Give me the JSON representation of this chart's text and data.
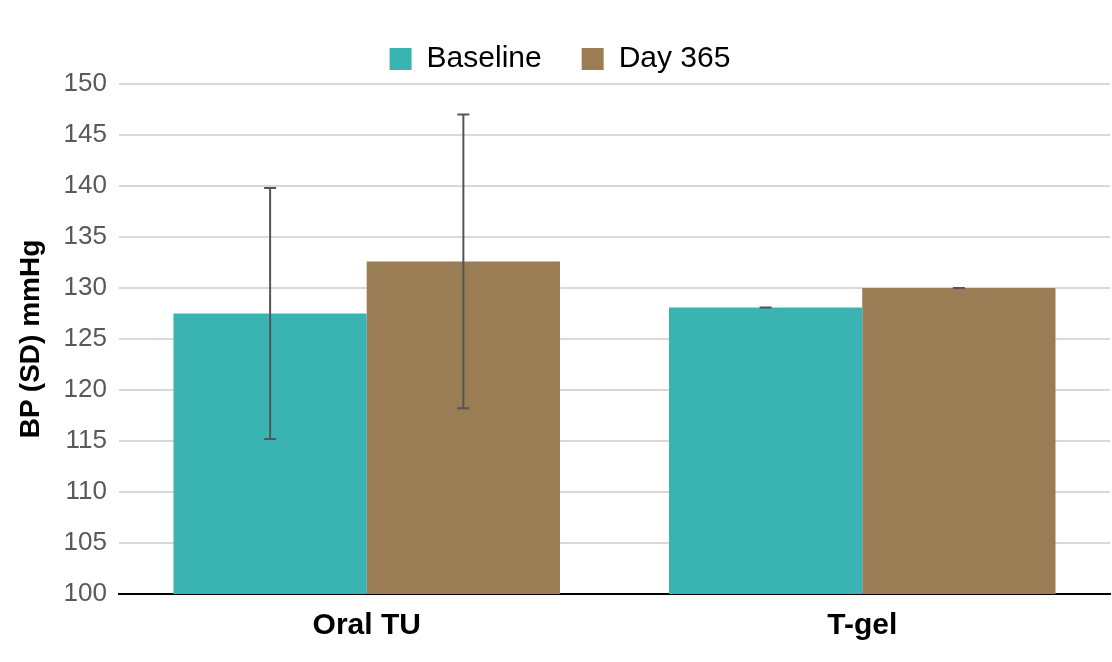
{
  "chart_data": {
    "type": "bar",
    "ylabel": "BP (SD) mmHg",
    "categories": [
      "Oral TU",
      "T-gel"
    ],
    "series": [
      {
        "name": "Baseline",
        "color": "#3ab3b3",
        "values": [
          127.5,
          128.1
        ],
        "errors": [
          12.3,
          0
        ]
      },
      {
        "name": "Day 365",
        "color": "#9a7d54",
        "values": [
          132.6,
          130.0
        ],
        "errors": [
          14.4,
          0
        ]
      }
    ],
    "ylim": [
      100,
      150
    ],
    "yticks": [
      100,
      105,
      110,
      115,
      120,
      125,
      130,
      135,
      140,
      145,
      150
    ],
    "grid": "y",
    "legend": "top"
  }
}
